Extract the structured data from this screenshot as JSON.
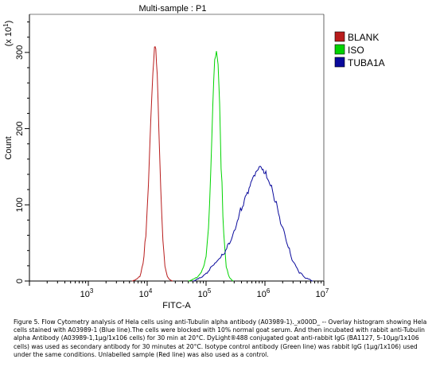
{
  "chart_data": {
    "type": "line",
    "title": "Multi-sample : P1",
    "xlabel": "FITC-A",
    "ylabel": "Count",
    "ymultiplier": "(x 10^1)",
    "xscale": "log",
    "xlim": [
      100,
      10000000
    ],
    "ylim": [
      0,
      350
    ],
    "xticks": [
      {
        "value": 1000,
        "base": "10",
        "exp": "3"
      },
      {
        "value": 10000,
        "base": "10",
        "exp": "4"
      },
      {
        "value": 100000,
        "base": "10",
        "exp": "5"
      },
      {
        "value": 1000000,
        "base": "10",
        "exp": "6"
      },
      {
        "value": 10000000,
        "base": "10",
        "exp": "7"
      }
    ],
    "yticks": [
      {
        "value": 0,
        "label": "0"
      },
      {
        "value": 100,
        "label": "100"
      },
      {
        "value": 200,
        "label": "200"
      },
      {
        "value": 300,
        "label": "300"
      }
    ],
    "legend_position": "right",
    "grid": false,
    "series": [
      {
        "name": "BLANK",
        "color": "#b81c1c",
        "x": [
          5500,
          6500,
          7500,
          8500,
          9500,
          10500,
          11500,
          12500,
          13300,
          14000,
          14800,
          15800,
          17000,
          18500,
          20000,
          22000,
          24000,
          27000
        ],
        "y": [
          0,
          2,
          6,
          22,
          60,
          130,
          210,
          275,
          305,
          305,
          270,
          200,
          120,
          55,
          20,
          6,
          2,
          0
        ]
      },
      {
        "name": "ISO",
        "color": "#00d400",
        "x": [
          50000,
          60000,
          70000,
          80000,
          90000,
          100000,
          110000,
          120000,
          130000,
          140000,
          150000,
          160000,
          170000,
          180000,
          200000,
          220000,
          250000,
          290000
        ],
        "y": [
          0,
          2,
          5,
          10,
          18,
          32,
          70,
          140,
          230,
          290,
          305,
          285,
          230,
          150,
          60,
          18,
          4,
          0
        ]
      },
      {
        "name": "TUBA1A",
        "color": "#0a0a9c",
        "x": [
          60000,
          80000,
          100000,
          130000,
          160000,
          200000,
          250000,
          300000,
          400000,
          500000,
          600000,
          700000,
          800000,
          900000,
          1000000,
          1200000,
          1500000,
          2000000,
          2500000,
          3000000,
          4000000,
          5000000,
          6500000
        ],
        "y": [
          0,
          4,
          10,
          20,
          28,
          36,
          50,
          65,
          95,
          115,
          132,
          140,
          147,
          148,
          143,
          130,
          105,
          70,
          45,
          25,
          10,
          4,
          0
        ]
      }
    ]
  },
  "caption": "Figure 5. Flow Cytometry analysis of Hela cells using anti-Tubulin alpha antibody (A03989-1)._x000D_ -- Overlay histogram showing Hela cells stained with A03989-1 (Blue line).The cells were blocked with 10% normal goat serum. And then incubated with rabbit anti-Tubulin alpha Antibody (A03989-1,1μg/1x106 cells) for 30 min at 20°C. DyLight®488 conjugated goat anti-rabbit IgG (BA1127, 5-10μg/1x106 cells) was used as secondary antibody for 30 minutes at 20°C. Isotype control antibody (Green line) was rabbit IgG (1μg/1x106) used under the same conditions. Unlabelled sample (Red line) was also used as a control."
}
